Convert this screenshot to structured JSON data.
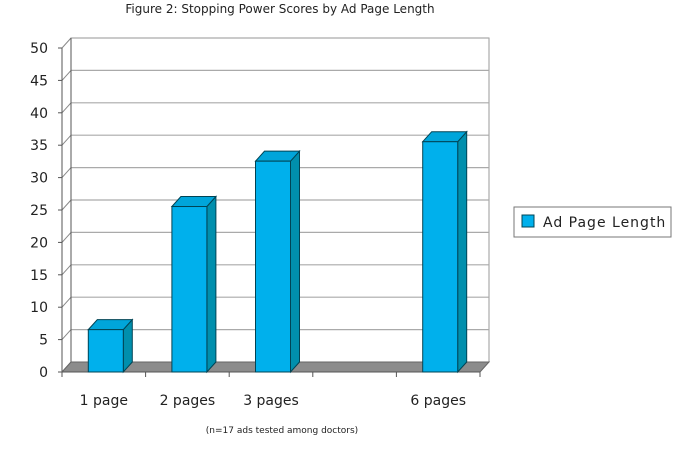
{
  "chart_data": {
    "type": "bar",
    "title": "Figure 2: Stopping Power Scores by Ad Page Length",
    "note": "(n=17 ads tested among doctors)",
    "categories": [
      "1 page",
      "2 pages",
      "3 pages",
      "",
      "6 pages"
    ],
    "series": [
      {
        "name": "Ad Page Length",
        "values": [
          7,
          26,
          33,
          null,
          36
        ]
      }
    ],
    "ylim": [
      0,
      50
    ],
    "yticks": [
      0,
      5,
      10,
      15,
      20,
      25,
      30,
      35,
      40,
      45,
      50
    ],
    "grid": true,
    "legend": "right",
    "three_d": true,
    "colors": {
      "bar_front": "#00b0ec",
      "bar_side": "#008fad",
      "bar_top": "#00a5da",
      "floor": "#8c8c8c"
    }
  }
}
